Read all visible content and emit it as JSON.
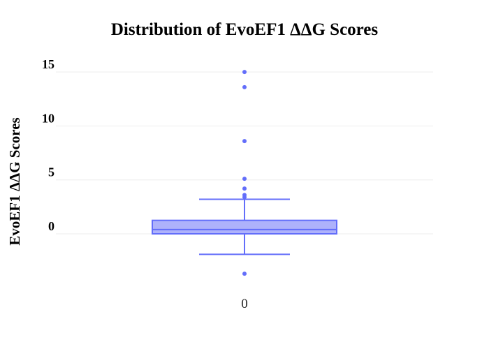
{
  "colors": {
    "box_fill": "#aeb2fb",
    "box_line": "#636efa",
    "grid": "#eeeeee",
    "background": "#ffffff"
  },
  "chart_data": {
    "type": "box",
    "title": "Distribution of EvoEF1 ΔΔG Scores",
    "xlabel": "",
    "ylabel": "EvoEF1 ΔΔG Scores",
    "ylim": [
      -5.5,
      16.5
    ],
    "y_ticks": [
      0,
      5,
      10,
      15
    ],
    "y_tick_labels": [
      "0",
      "5",
      "10",
      "15"
    ],
    "categories": [
      "0"
    ],
    "grid": true,
    "legend": "none",
    "series": [
      {
        "lower_fence": -1.9,
        "q1": 0.0,
        "median": 0.4,
        "q3": 1.25,
        "upper_fence": 3.2,
        "outliers": [
          15.0,
          13.6,
          8.6,
          5.1,
          4.2,
          3.6,
          3.4,
          -3.7
        ]
      }
    ]
  }
}
